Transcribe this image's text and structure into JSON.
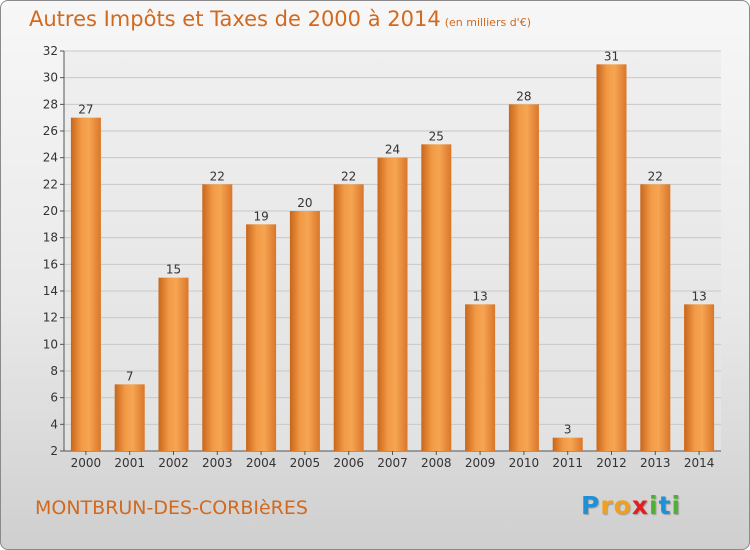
{
  "chart_data": {
    "type": "bar",
    "title": "Autres Impôts et Taxes de 2000 à 2014",
    "subtitle": "(en milliers d'€)",
    "categories": [
      "2000",
      "2001",
      "2002",
      "2003",
      "2004",
      "2005",
      "2006",
      "2007",
      "2008",
      "2009",
      "2010",
      "2011",
      "2012",
      "2013",
      "2014"
    ],
    "values": [
      27,
      7,
      15,
      22,
      19,
      20,
      22,
      24,
      25,
      13,
      28,
      3,
      31,
      22,
      13
    ],
    "ylim": [
      2,
      32
    ],
    "yticks": [
      2,
      4,
      6,
      8,
      10,
      12,
      14,
      16,
      18,
      20,
      22,
      24,
      26,
      28,
      30,
      32
    ],
    "grid": true,
    "bar_color": "#e8842c",
    "data_labels": true
  },
  "place_name": "MONTBRUN-DES-CORBIèRES",
  "logo": {
    "letters": [
      "P",
      "r",
      "o",
      "x",
      "i",
      "t",
      "i"
    ],
    "colors": [
      "#1e90d6",
      "#f0a020",
      "#f0a020",
      "#e02020",
      "#50b030",
      "#1e90d6",
      "#50b030"
    ]
  }
}
